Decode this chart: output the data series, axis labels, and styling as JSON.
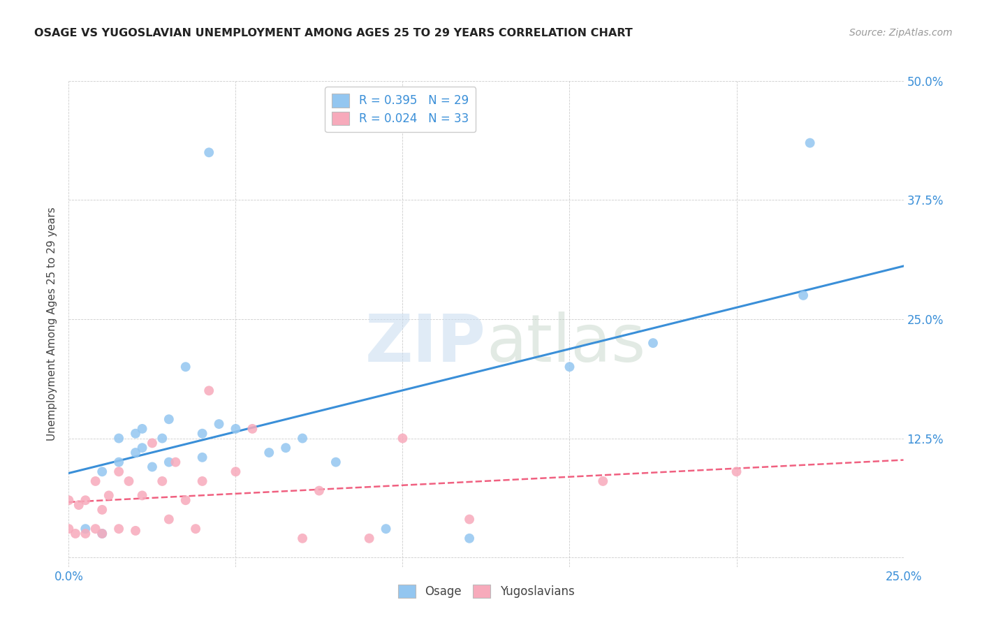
{
  "title": "OSAGE VS YUGOSLAVIAN UNEMPLOYMENT AMONG AGES 25 TO 29 YEARS CORRELATION CHART",
  "source": "Source: ZipAtlas.com",
  "ylabel": "Unemployment Among Ages 25 to 29 years",
  "xlim": [
    0.0,
    0.25
  ],
  "ylim": [
    -0.01,
    0.5
  ],
  "xticks": [
    0.0,
    0.05,
    0.1,
    0.15,
    0.2,
    0.25
  ],
  "yticks": [
    0.0,
    0.125,
    0.25,
    0.375,
    0.5
  ],
  "osage_R": 0.395,
  "osage_N": 29,
  "yugo_R": 0.024,
  "yugo_N": 33,
  "osage_color": "#93C6F0",
  "yugo_color": "#F7AABB",
  "osage_line_color": "#3A8FD8",
  "yugo_line_color": "#F06080",
  "osage_x": [
    0.005,
    0.01,
    0.01,
    0.015,
    0.015,
    0.02,
    0.02,
    0.022,
    0.022,
    0.025,
    0.028,
    0.03,
    0.03,
    0.035,
    0.04,
    0.04,
    0.042,
    0.045,
    0.05,
    0.06,
    0.065,
    0.07,
    0.08,
    0.095,
    0.12,
    0.15,
    0.175,
    0.22,
    0.222
  ],
  "osage_y": [
    0.03,
    0.025,
    0.09,
    0.1,
    0.125,
    0.11,
    0.13,
    0.115,
    0.135,
    0.095,
    0.125,
    0.1,
    0.145,
    0.2,
    0.105,
    0.13,
    0.425,
    0.14,
    0.135,
    0.11,
    0.115,
    0.125,
    0.1,
    0.03,
    0.02,
    0.2,
    0.225,
    0.275,
    0.435
  ],
  "yugo_x": [
    0.0,
    0.0,
    0.002,
    0.003,
    0.005,
    0.005,
    0.008,
    0.008,
    0.01,
    0.01,
    0.012,
    0.015,
    0.015,
    0.018,
    0.02,
    0.022,
    0.025,
    0.028,
    0.03,
    0.032,
    0.035,
    0.038,
    0.04,
    0.042,
    0.05,
    0.055,
    0.07,
    0.075,
    0.09,
    0.1,
    0.12,
    0.16,
    0.2
  ],
  "yugo_y": [
    0.03,
    0.06,
    0.025,
    0.055,
    0.025,
    0.06,
    0.03,
    0.08,
    0.025,
    0.05,
    0.065,
    0.03,
    0.09,
    0.08,
    0.028,
    0.065,
    0.12,
    0.08,
    0.04,
    0.1,
    0.06,
    0.03,
    0.08,
    0.175,
    0.09,
    0.135,
    0.02,
    0.07,
    0.02,
    0.125,
    0.04,
    0.08,
    0.09
  ]
}
